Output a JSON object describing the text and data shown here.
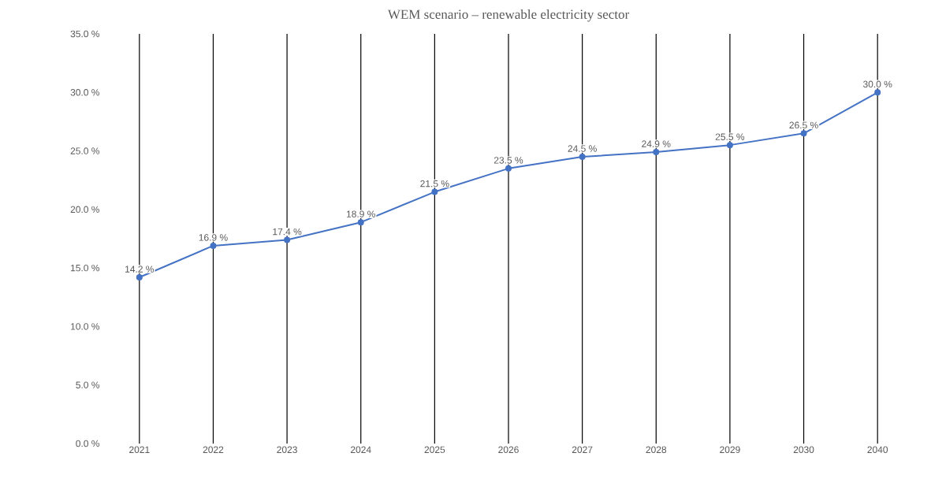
{
  "chart_data": {
    "type": "line",
    "title": "WEM scenario – renewable electricity sector",
    "categories": [
      "2021",
      "2022",
      "2023",
      "2024",
      "2025",
      "2026",
      "2027",
      "2028",
      "2029",
      "2030",
      "2040"
    ],
    "series": [
      {
        "color": "#4472c4",
        "values": [
          14.2,
          16.9,
          17.4,
          18.9,
          21.5,
          23.5,
          24.5,
          24.9,
          25.5,
          26.5,
          30.0
        ],
        "value_labels": [
          "14.2 %",
          "16.9 %",
          "17.4 %",
          "18.9 %",
          "21.5 %",
          "23.5 %",
          "24.5 %",
          "24.9 %",
          "25.5 %",
          "26.5 %",
          "30.0 %"
        ]
      }
    ],
    "ylim": [
      0,
      35
    ],
    "yticks": [
      {
        "value": 0,
        "label": "0.0 %"
      },
      {
        "value": 5,
        "label": "5.0 %"
      },
      {
        "value": 10,
        "label": "10.0 %"
      },
      {
        "value": 15,
        "label": "15.0 %"
      },
      {
        "value": 20,
        "label": "20.0 %"
      },
      {
        "value": 25,
        "label": "25.0 %"
      },
      {
        "value": 30,
        "label": "30.0 %"
      },
      {
        "value": 35,
        "label": "35.0 %"
      }
    ],
    "grid": "x",
    "marker": "circle",
    "line_style": "solid"
  }
}
